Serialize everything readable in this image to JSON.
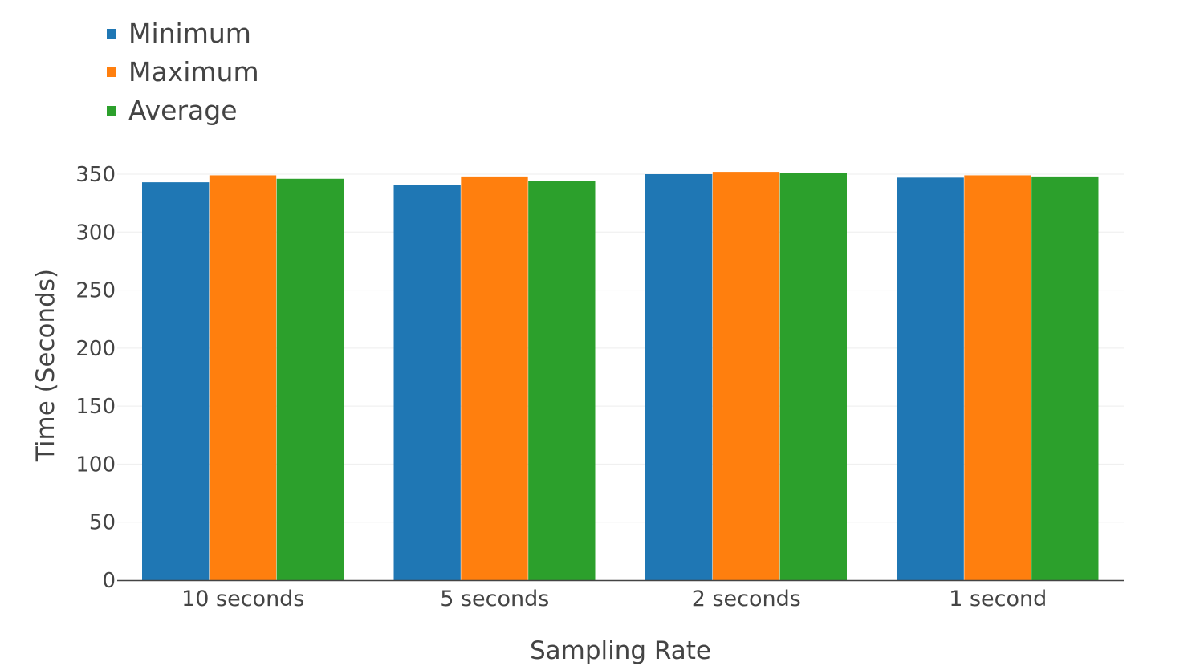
{
  "chart_data": {
    "type": "bar",
    "title": "",
    "xlabel": "Sampling Rate",
    "ylabel": "Time (Seconds)",
    "categories": [
      "10 seconds",
      "5 seconds",
      "2 seconds",
      "1 second"
    ],
    "series": [
      {
        "name": "Minimum",
        "color": "#1f77b4",
        "values": [
          343,
          341,
          350,
          347
        ]
      },
      {
        "name": "Maximum",
        "color": "#ff7f0e",
        "values": [
          349,
          348,
          352,
          349
        ]
      },
      {
        "name": "Average",
        "color": "#2ca02c",
        "values": [
          346,
          344,
          351,
          348
        ]
      }
    ],
    "ylim": [
      0,
      350
    ],
    "yticks": [
      "0",
      "50",
      "100",
      "150",
      "200",
      "250",
      "300",
      "350"
    ],
    "grid": true,
    "legend_position": "top-left"
  }
}
